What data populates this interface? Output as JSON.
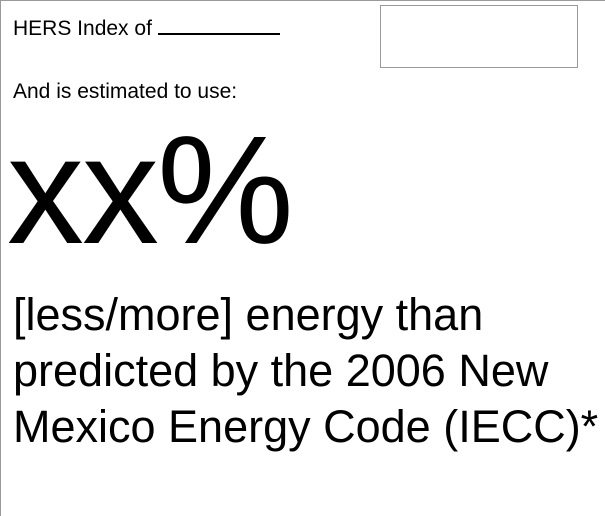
{
  "form": {
    "hers_label": "HERS Index of",
    "estimate_label": "And is estimated to use:",
    "percent_value": "xx%",
    "description": "[less/more] energy than predicted by the 2006 New Mexico Energy Code (IECC)*"
  }
}
